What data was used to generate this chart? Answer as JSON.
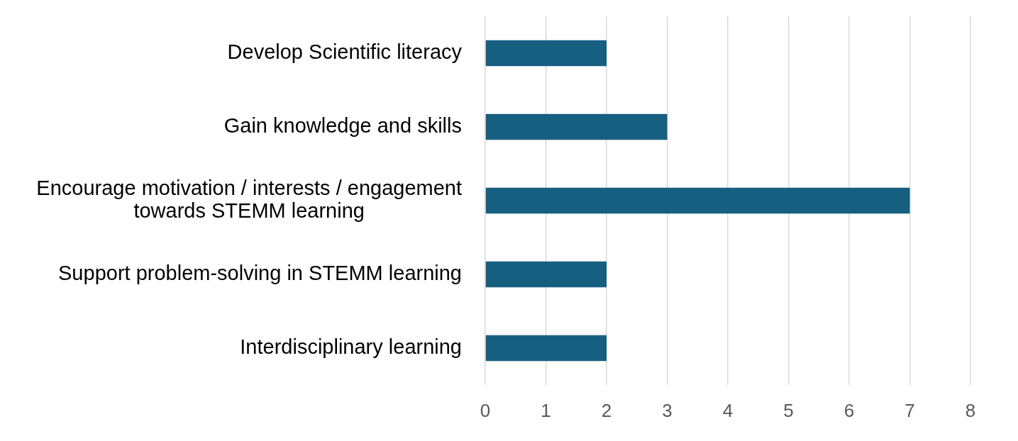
{
  "chart_data": {
    "type": "bar",
    "orientation": "horizontal",
    "categories": [
      "Develop Scientific literacy",
      "Gain knowledge and skills",
      "Encourage motivation / interests / engagement towards STEMM learning",
      "Support problem-solving in STEMM learning",
      "Interdisciplinary learning"
    ],
    "values": [
      2,
      3,
      7,
      2,
      2
    ],
    "color": "#175f81",
    "xlim": [
      0,
      8
    ],
    "xticks": [
      0,
      1,
      2,
      3,
      4,
      5,
      6,
      7,
      8
    ],
    "grid": "x"
  }
}
